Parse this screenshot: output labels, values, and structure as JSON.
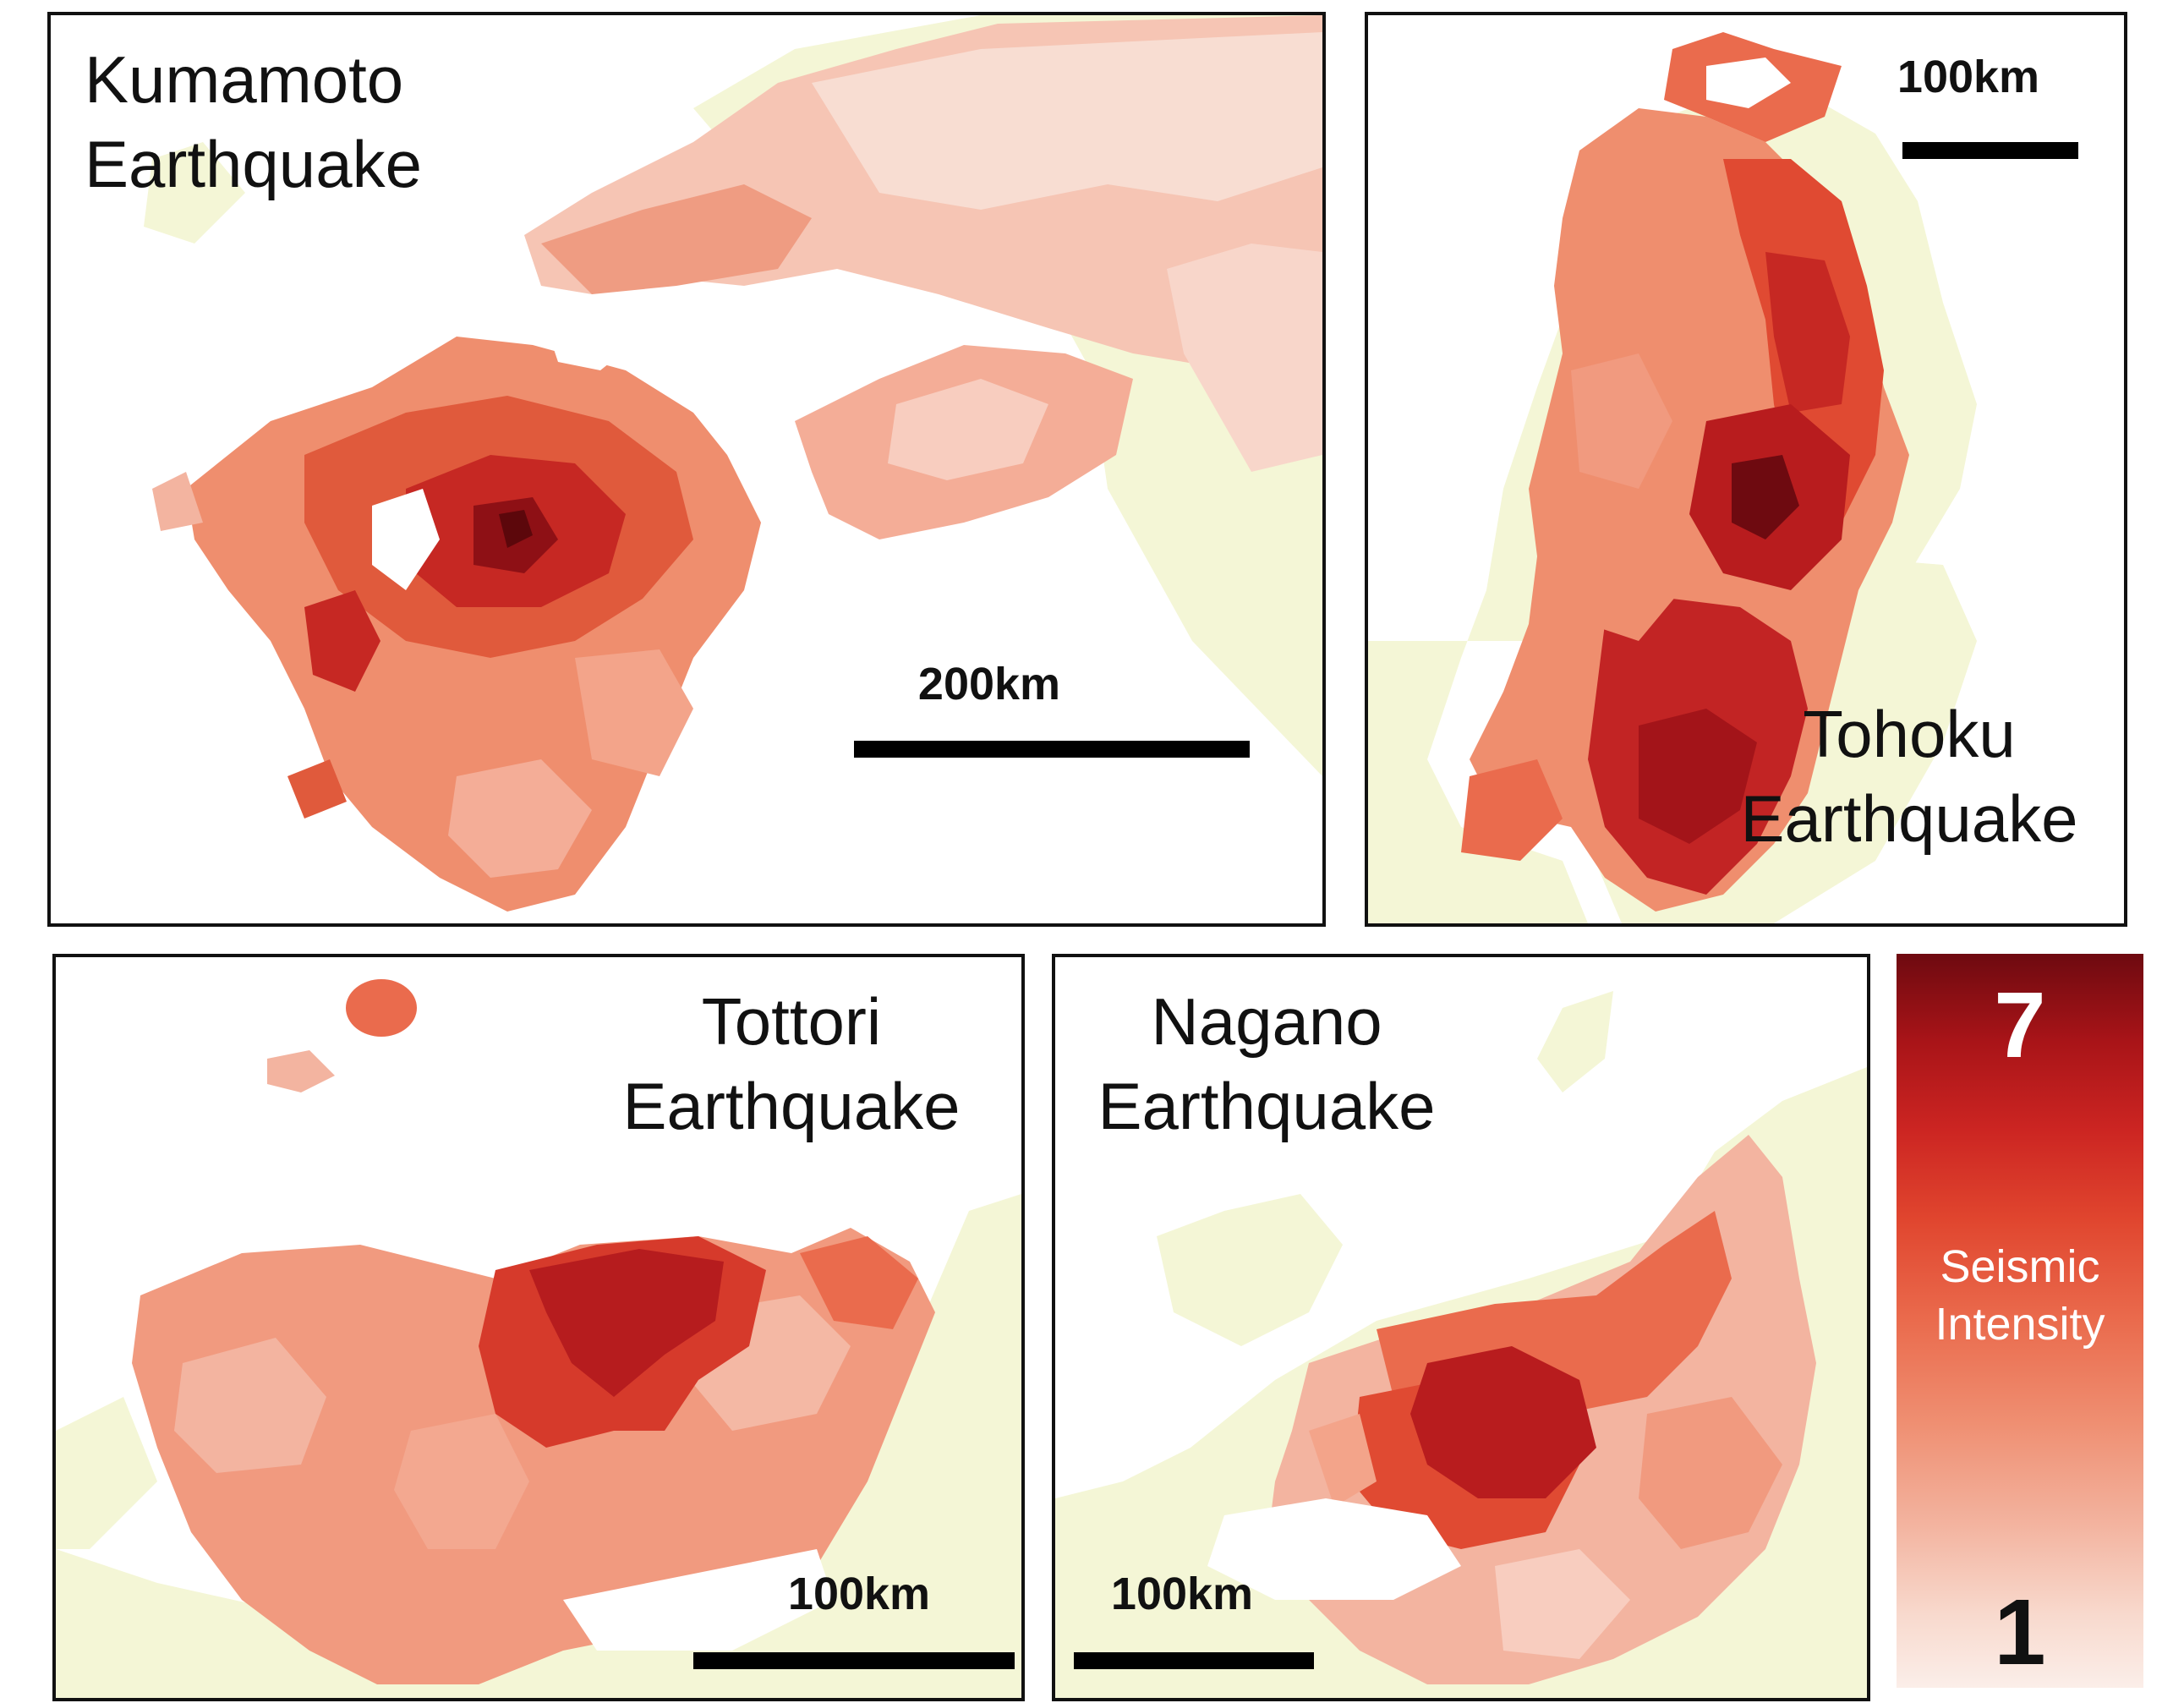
{
  "panels": {
    "kumamoto": {
      "title_line1": "Kumamoto",
      "title_line2": "Earthquake",
      "scale_label": "200km"
    },
    "tohoku": {
      "title_line1": "Tohoku",
      "title_line2": "Earthquake",
      "scale_label": "100km"
    },
    "tottori": {
      "title_line1": "Tottori",
      "title_line2": "Earthquake",
      "scale_label": "100km"
    },
    "nagano": {
      "title_line1": "Nagano",
      "title_line2": "Earthquake",
      "scale_label": "100km"
    }
  },
  "legend": {
    "title_line1": "Seismic",
    "title_line2": "Intensity",
    "max_label": "7",
    "min_label": "1"
  },
  "colors": {
    "land_background": "#f4f6d6",
    "sea": "#ffffff",
    "intensity_low": "#fbeee9",
    "intensity_mid": "#ea6b4d",
    "intensity_high": "#6e0a10"
  }
}
